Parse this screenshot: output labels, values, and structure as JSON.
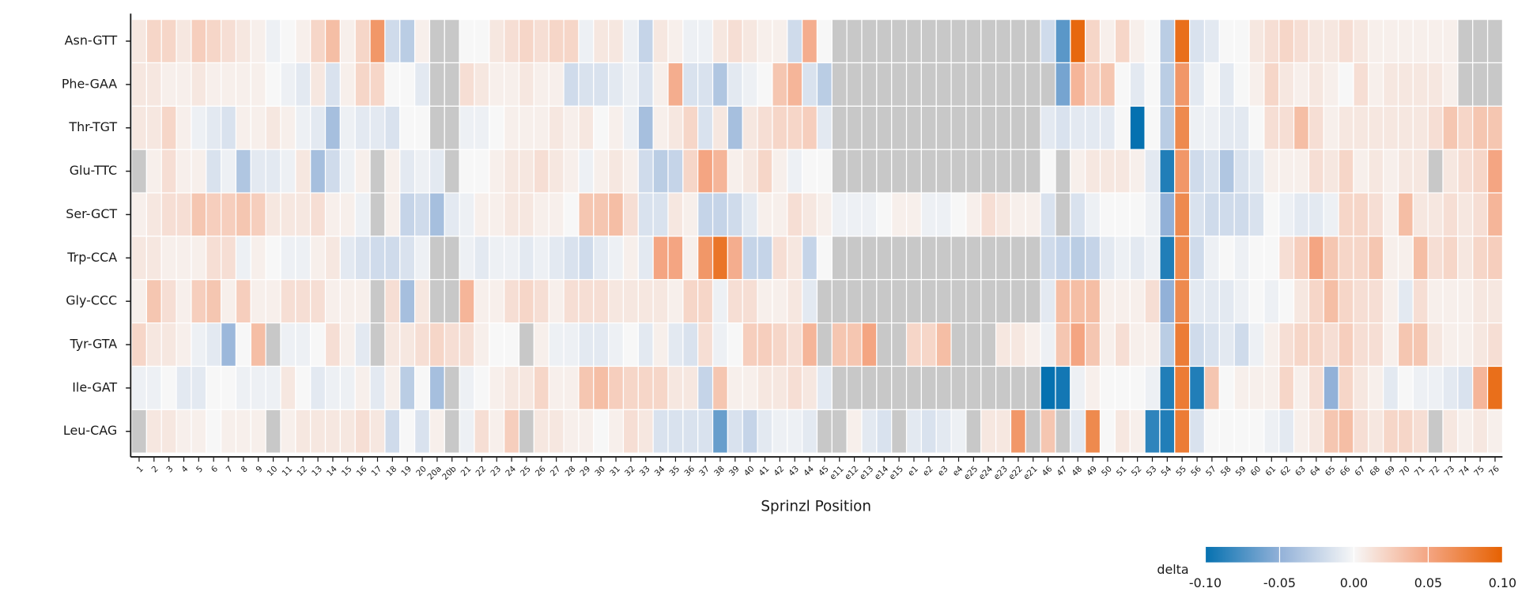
{
  "chart_data": {
    "type": "heatmap",
    "xlabel": "Sprinzl Position",
    "colorbar_label": "delta",
    "categories": [
      "1",
      "2",
      "3",
      "4",
      "5",
      "6",
      "7",
      "8",
      "9",
      "10",
      "11",
      "12",
      "13",
      "14",
      "15",
      "16",
      "17",
      "18",
      "19",
      "20",
      "20a",
      "20b",
      "21",
      "22",
      "23",
      "24",
      "25",
      "26",
      "27",
      "28",
      "29",
      "30",
      "31",
      "32",
      "33",
      "34",
      "35",
      "36",
      "37",
      "38",
      "39",
      "40",
      "41",
      "42",
      "43",
      "44",
      "45",
      "e11",
      "e12",
      "e13",
      "e14",
      "e15",
      "e1",
      "e2",
      "e3",
      "e4",
      "e25",
      "e24",
      "e23",
      "e22",
      "e21",
      "46",
      "47",
      "48",
      "49",
      "50",
      "51",
      "52",
      "53",
      "54",
      "55",
      "56",
      "57",
      "58",
      "59",
      "60",
      "61",
      "62",
      "63",
      "64",
      "65",
      "66",
      "67",
      "68",
      "69",
      "70",
      "71",
      "72",
      "73",
      "74",
      "75",
      "76"
    ],
    "series": [
      {
        "name": "Asn-GTT",
        "values": [
          0.01,
          0.02,
          0.02,
          0.01,
          0.025,
          0.02,
          0.015,
          0.01,
          0.005,
          -0.005,
          0,
          0.005,
          0.02,
          0.035,
          0.005,
          0.02,
          0.06,
          -0.02,
          -0.03,
          0.005,
          null,
          null,
          0,
          0,
          0.01,
          0.015,
          0.02,
          0.015,
          0.02,
          0.02,
          -0.005,
          0.01,
          0.01,
          -0.005,
          -0.025,
          0.01,
          0.005,
          -0.005,
          -0.005,
          0.01,
          0.015,
          0.01,
          0.005,
          0.005,
          -0.02,
          0.045,
          0,
          null,
          null,
          null,
          null,
          null,
          null,
          null,
          null,
          null,
          null,
          null,
          null,
          null,
          null,
          -0.02,
          -0.07,
          0.095,
          0.02,
          0.005,
          0.02,
          0.005,
          0,
          -0.03,
          0.09,
          -0.015,
          -0.01,
          0,
          0,
          0.01,
          0.015,
          0.02,
          0.015,
          0.01,
          0.01,
          0.015,
          0.01,
          0.005,
          0.005,
          0.005,
          0.005,
          0.005,
          0.005,
          null,
          null,
          null
        ]
      },
      {
        "name": "Phe-GAA",
        "values": [
          0.01,
          0.01,
          0.005,
          0.005,
          0.01,
          0.005,
          0.005,
          0.005,
          0.005,
          0,
          -0.005,
          -0.01,
          0.01,
          -0.015,
          0.005,
          0.02,
          0.02,
          0,
          0,
          -0.01,
          null,
          null,
          0.015,
          0.01,
          0.005,
          0.005,
          0.01,
          0.005,
          0.005,
          -0.02,
          -0.015,
          -0.015,
          -0.01,
          -0.005,
          -0.015,
          0.005,
          0.045,
          -0.015,
          -0.015,
          -0.035,
          -0.01,
          -0.005,
          0,
          0.03,
          0.04,
          -0.015,
          -0.03,
          null,
          null,
          null,
          null,
          null,
          null,
          null,
          null,
          null,
          null,
          null,
          null,
          null,
          null,
          null,
          -0.06,
          0.04,
          0.025,
          0.03,
          0,
          -0.01,
          0,
          -0.03,
          0.06,
          -0.01,
          0,
          -0.01,
          0,
          0.005,
          0.02,
          0.01,
          0.005,
          0.01,
          0.005,
          0,
          0.015,
          0.005,
          0.01,
          0.01,
          0.01,
          0.01,
          0.005,
          null,
          null,
          null
        ]
      },
      {
        "name": "Thr-TGT",
        "values": [
          0.01,
          0.01,
          0.02,
          0.005,
          -0.005,
          -0.01,
          -0.015,
          0.005,
          0.005,
          0.01,
          0.005,
          -0.005,
          -0.01,
          -0.04,
          -0.005,
          -0.01,
          -0.01,
          -0.015,
          0,
          0,
          null,
          null,
          -0.005,
          -0.005,
          0,
          0.005,
          0.005,
          0.005,
          0.01,
          0.005,
          0.01,
          0,
          0.005,
          -0.005,
          -0.04,
          0.005,
          0.01,
          0.02,
          -0.015,
          0.01,
          -0.04,
          0.01,
          0.015,
          0.02,
          0.02,
          0.025,
          -0.01,
          null,
          null,
          null,
          null,
          null,
          null,
          null,
          null,
          null,
          null,
          null,
          null,
          null,
          null,
          -0.01,
          -0.015,
          -0.01,
          -0.01,
          -0.01,
          0,
          -0.1,
          0,
          -0.03,
          0.07,
          -0.005,
          -0.005,
          -0.01,
          -0.01,
          0,
          0.015,
          0.015,
          0.035,
          0.015,
          0.005,
          0.01,
          0.01,
          0.01,
          0.01,
          0.01,
          0.01,
          0.015,
          0.03,
          0.02,
          0.03,
          0.03
        ]
      },
      {
        "name": "Glu-TTC",
        "values": [
          null,
          0.005,
          0.015,
          0.005,
          0.005,
          -0.015,
          -0.005,
          -0.035,
          -0.01,
          -0.01,
          -0.005,
          0.01,
          -0.04,
          -0.02,
          -0.005,
          0.005,
          null,
          0.005,
          -0.01,
          -0.005,
          -0.01,
          null,
          0,
          0,
          0.005,
          0.01,
          0.01,
          0.015,
          0.01,
          0.005,
          -0.005,
          0.005,
          0.01,
          0.005,
          -0.02,
          -0.03,
          -0.025,
          0.02,
          0.05,
          0.04,
          0.005,
          0.01,
          0.02,
          0.005,
          -0.005,
          0,
          0,
          null,
          null,
          null,
          null,
          null,
          null,
          null,
          null,
          null,
          null,
          null,
          null,
          null,
          null,
          0,
          null,
          0.005,
          0.01,
          0.01,
          0.01,
          0.005,
          -0.01,
          -0.09,
          0.06,
          -0.02,
          -0.015,
          -0.035,
          -0.015,
          -0.01,
          0.005,
          0.005,
          0.005,
          0.015,
          0.01,
          0.02,
          0.005,
          0.01,
          0.005,
          0.01,
          0.01,
          null,
          0.01,
          0.015,
          0.02,
          0.05
        ]
      },
      {
        "name": "Ser-GCT",
        "values": [
          0.005,
          0.01,
          0.015,
          0.015,
          0.03,
          0.025,
          0.025,
          0.03,
          0.025,
          0.01,
          0.01,
          0.01,
          0.015,
          0.005,
          0.005,
          -0.005,
          null,
          0.005,
          -0.025,
          -0.02,
          -0.04,
          -0.01,
          -0.005,
          0.005,
          0.005,
          0.01,
          0.01,
          0.005,
          0.005,
          0,
          0.03,
          0.03,
          0.035,
          0.015,
          -0.015,
          -0.015,
          0.01,
          0.005,
          -0.025,
          -0.025,
          -0.02,
          -0.01,
          0.005,
          0.005,
          0.015,
          0.01,
          0.005,
          -0.005,
          -0.005,
          -0.005,
          0,
          0.005,
          0.005,
          -0.005,
          -0.005,
          0,
          0.005,
          0.015,
          0.01,
          0.005,
          0.005,
          -0.015,
          null,
          -0.015,
          -0.005,
          0,
          0,
          0,
          -0.005,
          -0.05,
          0.07,
          -0.015,
          -0.02,
          -0.02,
          -0.02,
          -0.015,
          0,
          -0.005,
          -0.01,
          -0.01,
          -0.005,
          0.02,
          0.02,
          0.015,
          0.005,
          0.035,
          0.01,
          0.01,
          0.015,
          0.01,
          0.015,
          0.04
        ]
      },
      {
        "name": "Trp-CCA",
        "values": [
          0.01,
          0.01,
          0.005,
          0.005,
          0.005,
          0.015,
          0.015,
          -0.005,
          0.005,
          0,
          -0.005,
          -0.005,
          0.005,
          0.01,
          -0.01,
          -0.015,
          -0.02,
          -0.02,
          -0.015,
          -0.005,
          null,
          null,
          -0.005,
          -0.01,
          -0.005,
          -0.005,
          -0.01,
          -0.005,
          -0.01,
          -0.015,
          -0.02,
          -0.01,
          -0.005,
          0.005,
          -0.01,
          0.05,
          0.05,
          0.005,
          0.06,
          0.085,
          0.045,
          -0.025,
          -0.025,
          0.015,
          0.01,
          -0.025,
          0,
          null,
          null,
          null,
          null,
          null,
          null,
          null,
          null,
          null,
          null,
          null,
          null,
          null,
          null,
          -0.02,
          -0.025,
          -0.03,
          -0.025,
          -0.01,
          -0.005,
          -0.01,
          -0.005,
          -0.09,
          0.07,
          -0.02,
          -0.005,
          0,
          -0.005,
          0,
          0,
          0.015,
          0.025,
          0.05,
          0.03,
          0.02,
          0.02,
          0.03,
          0.005,
          0.005,
          0.035,
          0.015,
          0.02,
          0.01,
          0.02,
          0.025
        ]
      },
      {
        "name": "Gly-CCC",
        "values": [
          0.005,
          0.03,
          0.015,
          0.005,
          0.025,
          0.03,
          0.005,
          0.025,
          0.005,
          0.005,
          0.015,
          0.015,
          0.015,
          0.005,
          0.005,
          0.005,
          null,
          0.015,
          -0.04,
          0.01,
          null,
          null,
          0.04,
          0.005,
          0.005,
          0.015,
          0.02,
          0.015,
          0.005,
          0.015,
          0.015,
          0.015,
          0.01,
          0.01,
          0.01,
          0.01,
          0.005,
          0.02,
          0.02,
          -0.005,
          0.015,
          0.015,
          0.005,
          0.005,
          0.01,
          -0.01,
          null,
          null,
          null,
          null,
          null,
          null,
          null,
          null,
          null,
          null,
          null,
          null,
          null,
          null,
          null,
          -0.01,
          0.035,
          0.035,
          0.035,
          0.005,
          0.005,
          0.005,
          0.015,
          -0.05,
          0.07,
          -0.01,
          -0.01,
          -0.01,
          -0.005,
          0,
          -0.005,
          0,
          0.01,
          0.02,
          0.035,
          0.02,
          0.015,
          0.015,
          0.005,
          -0.01,
          0.015,
          0.005,
          0.005,
          0.005,
          0.01,
          0.01
        ]
      },
      {
        "name": "Tyr-GTA",
        "values": [
          0.02,
          0.01,
          0.01,
          0.005,
          -0.005,
          -0.01,
          -0.045,
          0,
          0.035,
          null,
          -0.005,
          -0.005,
          0,
          0.015,
          0.005,
          -0.01,
          null,
          0.01,
          0.01,
          0.015,
          0.02,
          0.015,
          0.015,
          0.005,
          0,
          0,
          null,
          0.005,
          -0.005,
          -0.005,
          -0.01,
          -0.01,
          -0.005,
          0,
          -0.01,
          0.005,
          -0.01,
          -0.015,
          0.015,
          -0.005,
          0,
          0.025,
          0.025,
          0.02,
          0.015,
          0.04,
          null,
          0.03,
          0.03,
          0.05,
          null,
          null,
          0.02,
          0.02,
          0.035,
          null,
          null,
          null,
          0.01,
          0.01,
          0.005,
          -0.005,
          0.03,
          0.05,
          0.03,
          0.005,
          0.015,
          0.005,
          0.005,
          -0.03,
          0.08,
          -0.02,
          -0.015,
          -0.01,
          -0.02,
          -0.005,
          0.005,
          0.015,
          0.02,
          0.02,
          0.015,
          0.025,
          0.015,
          0.015,
          0.005,
          0.03,
          0.03,
          0.01,
          0.005,
          0.005,
          0.01,
          0.015
        ]
      },
      {
        "name": "Ile-GAT",
        "values": [
          -0.005,
          -0.005,
          0,
          -0.01,
          -0.01,
          0,
          0,
          -0.005,
          -0.005,
          -0.005,
          0.01,
          0,
          -0.01,
          -0.005,
          -0.005,
          0.005,
          -0.01,
          0.005,
          -0.03,
          0,
          -0.04,
          null,
          -0.005,
          0,
          0.005,
          0.01,
          0.01,
          0.02,
          0.005,
          0.005,
          0.03,
          0.035,
          0.025,
          0.02,
          0.02,
          0.02,
          0.01,
          0.01,
          -0.025,
          0.03,
          0.005,
          0.005,
          0.01,
          0.01,
          0.015,
          0.01,
          -0.01,
          null,
          null,
          null,
          null,
          null,
          null,
          null,
          null,
          null,
          null,
          null,
          null,
          null,
          null,
          -0.1,
          -0.095,
          -0.005,
          0.005,
          0,
          0,
          0,
          -0.005,
          -0.09,
          0.08,
          -0.09,
          0.03,
          0,
          0.005,
          0.005,
          0.005,
          0.02,
          0.005,
          0.015,
          -0.05,
          0.02,
          0.01,
          0.005,
          -0.01,
          0,
          -0.005,
          -0.005,
          -0.01,
          -0.015,
          0.04,
          0.09
        ]
      },
      {
        "name": "Leu-CAG",
        "values": [
          null,
          0.01,
          0.01,
          0.005,
          0.005,
          0,
          0.005,
          0.005,
          0.005,
          null,
          0.005,
          0.01,
          0.01,
          0.01,
          0.01,
          0.015,
          0.01,
          -0.02,
          0,
          -0.015,
          0.005,
          null,
          -0.005,
          0.015,
          0.005,
          0.025,
          null,
          0.01,
          0.01,
          0.005,
          0.005,
          0,
          0.005,
          0.015,
          0.01,
          -0.015,
          -0.015,
          -0.015,
          -0.015,
          -0.065,
          -0.015,
          -0.025,
          -0.01,
          -0.005,
          -0.005,
          -0.01,
          null,
          null,
          0.005,
          -0.01,
          -0.015,
          null,
          -0.01,
          -0.015,
          -0.01,
          -0.005,
          null,
          0.01,
          0.01,
          0.06,
          null,
          0.03,
          null,
          -0.01,
          0.07,
          0,
          0.01,
          0.005,
          -0.085,
          -0.09,
          0.08,
          -0.015,
          0,
          0,
          0,
          0,
          -0.005,
          -0.01,
          0.005,
          0.01,
          0.03,
          0.035,
          0.015,
          0.01,
          0.02,
          0.02,
          0.015,
          null,
          0.01,
          0.005,
          0.01,
          0.005
        ]
      }
    ],
    "clim": [
      -0.1,
      0.1
    ],
    "cticks": [
      {
        "value": -0.1,
        "label": "-0.10"
      },
      -0.05,
      {
        "value": 0,
        "label": "0.00"
      },
      0.05,
      {
        "value": 0.1,
        "label": "0.10"
      }
    ],
    "cmap": [
      "#0571b0",
      "#92b1d8",
      "#f7f7f7",
      "#f4a582",
      "#e66101"
    ],
    "missing_color": "#c8c8c8",
    "cell_border_color": "#ffffff"
  }
}
